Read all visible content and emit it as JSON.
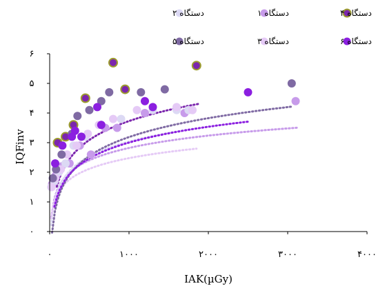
{
  "chart_data": {
    "type": "scatter",
    "xlabel": "IAK(µGy)",
    "ylabel": "IQFinv",
    "xlim": [
      0,
      4000
    ],
    "ylim": [
      0,
      6
    ],
    "x_tick_labels": [
      "۰",
      "۱۰۰۰",
      "۲۰۰۰",
      "۳۰۰۰",
      "۴۰۰۰"
    ],
    "y_tick_labels": [
      "۰",
      "۱",
      "۲",
      "۳",
      "۴",
      "۵",
      "۶"
    ],
    "legend_position": "top",
    "series": [
      {
        "name": "دستگاه ۱",
        "color": "#c79bea",
        "points": [
          [
            30,
            1.6
          ],
          [
            80,
            1.9
          ],
          [
            150,
            2.2
          ],
          [
            250,
            2.3
          ],
          [
            380,
            2.9
          ],
          [
            520,
            2.6
          ],
          [
            700,
            3.5
          ],
          [
            850,
            3.5
          ],
          [
            1200,
            4.0
          ],
          [
            1700,
            4.0
          ],
          [
            3100,
            4.4
          ]
        ],
        "fit": {
          "a": 0.6,
          "b": 1.44,
          "x0": 20,
          "x1": 3120
        }
      },
      {
        "name": "دستگاه ۲",
        "color": "#dcd9f4",
        "points": [
          [
            20,
            1.5
          ],
          [
            60,
            1.7
          ],
          [
            110,
            2.0
          ],
          [
            200,
            2.3
          ],
          [
            300,
            2.9
          ],
          [
            450,
            3.2
          ],
          [
            650,
            3.6
          ],
          [
            900,
            3.8
          ],
          [
            1300,
            4.1
          ],
          [
            1600,
            4.1
          ],
          [
            1750,
            4.1
          ]
        ],
        "fit": {
          "a": 0.72,
          "b": 1.38,
          "x0": 20,
          "x1": 1800
        }
      },
      {
        "name": "دستگاه ۳",
        "color": "#e5caf6",
        "points": [
          [
            25,
            1.5
          ],
          [
            70,
            1.8
          ],
          [
            140,
            2.1
          ],
          [
            220,
            2.6
          ],
          [
            340,
            2.9
          ],
          [
            480,
            3.3
          ],
          [
            620,
            3.6
          ],
          [
            800,
            3.8
          ],
          [
            1100,
            4.1
          ],
          [
            1600,
            4.2
          ],
          [
            1800,
            4.1
          ]
        ],
        "fit": {
          "a": 0.52,
          "b": 1.28,
          "x0": 20,
          "x1": 1850
        }
      },
      {
        "name": "دستگاه ۴",
        "color": "#7b26ad",
        "stroke": "#9c9c2e",
        "points": [
          [
            100,
            3.0
          ],
          [
            200,
            3.2
          ],
          [
            300,
            3.6
          ],
          [
            450,
            4.5
          ],
          [
            800,
            5.7
          ],
          [
            950,
            4.8
          ],
          [
            1850,
            5.6
          ]
        ],
        "fit": {
          "a": 0.92,
          "b": 1.61,
          "x0": 90,
          "x1": 1880
        }
      },
      {
        "name": "دستگاه ۵",
        "color": "#7f6aa3",
        "points": [
          [
            40,
            1.8
          ],
          [
            80,
            2.1
          ],
          [
            150,
            2.6
          ],
          [
            280,
            3.3
          ],
          [
            350,
            3.9
          ],
          [
            500,
            4.1
          ],
          [
            650,
            4.4
          ],
          [
            750,
            4.7
          ],
          [
            1150,
            4.7
          ],
          [
            1450,
            4.8
          ],
          [
            3050,
            5.0
          ]
        ],
        "fit": {
          "a": 0.92,
          "b": 1.07,
          "x0": 30,
          "x1": 3060
        }
      },
      {
        "name": "دستگاه ۶",
        "color": "#8b1fe0",
        "points": [
          [
            70,
            2.3
          ],
          [
            160,
            2.9
          ],
          [
            280,
            3.2
          ],
          [
            320,
            3.4
          ],
          [
            400,
            3.2
          ],
          [
            600,
            4.2
          ],
          [
            650,
            3.6
          ],
          [
            1200,
            4.4
          ],
          [
            1300,
            4.2
          ],
          [
            2500,
            4.7
          ]
        ],
        "fit": {
          "a": 0.77,
          "b": 1.23,
          "x0": 60,
          "x1": 2510
        }
      }
    ]
  }
}
